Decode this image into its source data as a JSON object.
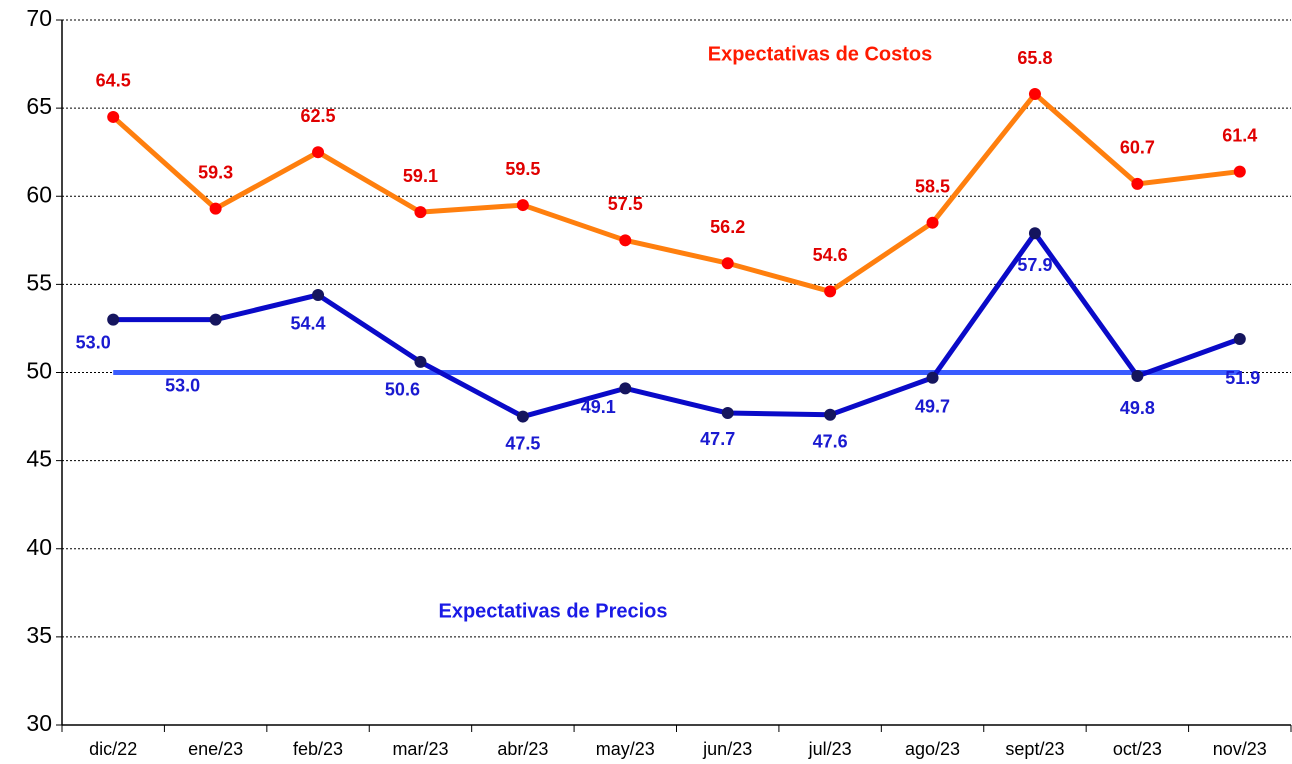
{
  "chart_data": {
    "type": "line",
    "categories": [
      "dic/22",
      "ene/23",
      "feb/23",
      "mar/23",
      "abr/23",
      "may/23",
      "jun/23",
      "jul/23",
      "ago/23",
      "sept/23",
      "oct/23",
      "nov/23"
    ],
    "series": [
      {
        "name": "Expectativas de Costos",
        "color": "#ff7f0e",
        "marker_color": "#ff0000",
        "label_color": "#e00000",
        "values": [
          64.5,
          59.3,
          62.5,
          59.1,
          59.5,
          57.5,
          56.2,
          54.6,
          58.5,
          65.8,
          60.7,
          61.4
        ],
        "value_labels": [
          "64.5",
          "59.3",
          "62.5",
          "59.1",
          "59.5",
          "57.5",
          "56.2",
          "54.6",
          "58.5",
          "65.8",
          "60.7",
          "61.4"
        ]
      },
      {
        "name": "Expectativas de Precios",
        "color": "#0a0ac8",
        "marker_color": "#15155e",
        "label_color": "#1a1ad0",
        "values": [
          53.0,
          53.0,
          54.4,
          50.6,
          47.5,
          49.1,
          47.7,
          47.6,
          49.7,
          57.9,
          49.8,
          51.9
        ],
        "value_labels": [
          "53.0",
          "53.0",
          "54.4",
          "50.6",
          "47.5",
          "49.1",
          "47.7",
          "47.6",
          "49.7",
          "57.9",
          "49.8",
          "51.9"
        ]
      }
    ],
    "reference_line": {
      "value": 50,
      "color": "#3a5cff"
    },
    "ylim": [
      30,
      70
    ],
    "yticks": [
      30,
      35,
      40,
      45,
      50,
      55,
      60,
      65,
      70
    ],
    "grid": true
  }
}
